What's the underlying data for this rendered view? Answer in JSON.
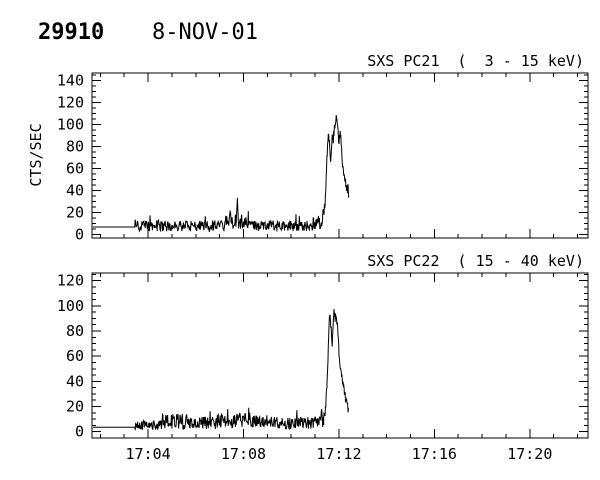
{
  "header": {
    "event_number": "29910",
    "date": "8-NOV-01"
  },
  "colors": {
    "foreground": "#000000",
    "background": "#ffffff"
  },
  "chart_data": [
    {
      "type": "line",
      "panel": "pc21",
      "title": "SXS PC21  (  3 - 15 keV)",
      "ylabel": "CTS/SEC",
      "xlabel": "",
      "ylim": [
        -3,
        146.6
      ],
      "yticks": [
        0,
        20,
        40,
        60,
        80,
        100,
        120,
        140
      ],
      "ytick_labels": [
        "0",
        "20",
        "40",
        "60",
        "80",
        "100",
        "120",
        "140"
      ],
      "y_minor_step": 5,
      "xlim": [
        1.65,
        22.44
      ],
      "x_unit": "minutes after 17:00",
      "xticks": [
        4,
        8,
        12,
        16,
        20
      ],
      "xtick_labels": [
        "17:04",
        "17:08",
        "17:12",
        "17:16",
        "17:20"
      ],
      "x_minor_step": 1,
      "show_x_labels": false,
      "grid": false,
      "line_color": "#000000",
      "seed": 20011108,
      "series_model": {
        "segments": [
          {
            "type": "flat",
            "t": [
              1.65,
              3.44
            ],
            "v": 7
          },
          {
            "type": "noise",
            "t": [
              3.44,
              7.3
            ],
            "mean": 8,
            "amp": 5,
            "spike_p": 0.05,
            "spike_max": 21
          },
          {
            "type": "noise",
            "t": [
              7.3,
              7.7
            ],
            "mean": 12,
            "amp": 7,
            "spike_p": 0.06,
            "spike_max": 24
          },
          {
            "type": "burst",
            "noise": 2,
            "points": [
              [
                7.7,
                13
              ],
              [
                7.74,
                34
              ],
              [
                7.78,
                15
              ]
            ]
          },
          {
            "type": "noise",
            "t": [
              7.78,
              8.3
            ],
            "mean": 11,
            "amp": 6,
            "spike_p": 0.05,
            "spike_max": 22
          },
          {
            "type": "noise",
            "t": [
              8.3,
              10.9
            ],
            "mean": 8,
            "amp": 5,
            "spike_p": 0.05,
            "spike_max": 20
          },
          {
            "type": "noise",
            "t": [
              10.9,
              11.3
            ],
            "mean": 11,
            "amp": 6,
            "spike_p": 0.05,
            "spike_max": 22
          },
          {
            "type": "burst",
            "noise": 5,
            "points": [
              [
                11.3,
                14
              ],
              [
                11.38,
                22
              ],
              [
                11.44,
                34
              ],
              [
                11.48,
                62
              ],
              [
                11.52,
                80
              ],
              [
                11.56,
                90
              ],
              [
                11.6,
                86
              ],
              [
                11.64,
                68
              ],
              [
                11.68,
                76
              ],
              [
                11.72,
                88
              ],
              [
                11.76,
                84
              ],
              [
                11.8,
                95
              ],
              [
                11.84,
                100
              ],
              [
                11.88,
                105
              ],
              [
                11.92,
                100
              ],
              [
                11.96,
                93
              ],
              [
                12.0,
                85
              ],
              [
                12.04,
                95
              ],
              [
                12.08,
                88
              ],
              [
                12.12,
                72
              ],
              [
                12.16,
                62
              ],
              [
                12.2,
                55
              ],
              [
                12.24,
                50
              ],
              [
                12.28,
                47
              ],
              [
                12.32,
                44
              ],
              [
                12.38,
                42
              ],
              [
                12.42,
                28
              ]
            ]
          }
        ]
      }
    },
    {
      "type": "line",
      "panel": "pc22",
      "title": "SXS PC22  ( 15 - 40 keV)",
      "ylabel": "",
      "xlabel": "",
      "ylim": [
        -5,
        126.1
      ],
      "yticks": [
        0,
        20,
        40,
        60,
        80,
        100,
        120
      ],
      "ytick_labels": [
        "0",
        "20",
        "40",
        "60",
        "80",
        "100",
        "120"
      ],
      "y_minor_step": 5,
      "xlim": [
        1.65,
        22.44
      ],
      "x_unit": "minutes after 17:00",
      "xticks": [
        4,
        8,
        12,
        16,
        20
      ],
      "xtick_labels": [
        "17:04",
        "17:08",
        "17:12",
        "17:16",
        "17:20"
      ],
      "x_minor_step": 1,
      "show_x_labels": true,
      "grid": false,
      "line_color": "#000000",
      "seed": 19991122,
      "series_model": {
        "segments": [
          {
            "type": "flat",
            "t": [
              1.65,
              3.44
            ],
            "v": 3.5
          },
          {
            "type": "noise",
            "t": [
              3.44,
              4.6
            ],
            "mean": 5,
            "amp": 4,
            "spike_p": 0.04,
            "spike_max": 15
          },
          {
            "type": "noise",
            "t": [
              4.6,
              5.7
            ],
            "mean": 8,
            "amp": 6,
            "spike_p": 0.06,
            "spike_max": 22
          },
          {
            "type": "noise",
            "t": [
              5.7,
              6.9
            ],
            "mean": 7,
            "amp": 5,
            "spike_p": 0.05,
            "spike_max": 18
          },
          {
            "type": "noise",
            "t": [
              6.9,
              8.6
            ],
            "mean": 9,
            "amp": 6,
            "spike_p": 0.06,
            "spike_max": 21
          },
          {
            "type": "noise",
            "t": [
              8.6,
              11.36
            ],
            "mean": 7,
            "amp": 5,
            "spike_p": 0.05,
            "spike_max": 18
          },
          {
            "type": "burst",
            "noise": 4,
            "points": [
              [
                11.36,
                10
              ],
              [
                11.42,
                16
              ],
              [
                11.48,
                30
              ],
              [
                11.52,
                48
              ],
              [
                11.56,
                70
              ],
              [
                11.6,
                88
              ],
              [
                11.64,
                92
              ],
              [
                11.68,
                78
              ],
              [
                11.72,
                68
              ],
              [
                11.76,
                85
              ],
              [
                11.8,
                97
              ],
              [
                11.84,
                90
              ],
              [
                11.88,
                94
              ],
              [
                11.92,
                86
              ],
              [
                11.96,
                76
              ],
              [
                12.0,
                65
              ],
              [
                12.04,
                55
              ],
              [
                12.08,
                48
              ],
              [
                12.12,
                44
              ],
              [
                12.16,
                38
              ],
              [
                12.2,
                34
              ],
              [
                12.24,
                30
              ],
              [
                12.28,
                27
              ],
              [
                12.34,
                24
              ],
              [
                12.4,
                14
              ]
            ]
          }
        ]
      }
    }
  ]
}
